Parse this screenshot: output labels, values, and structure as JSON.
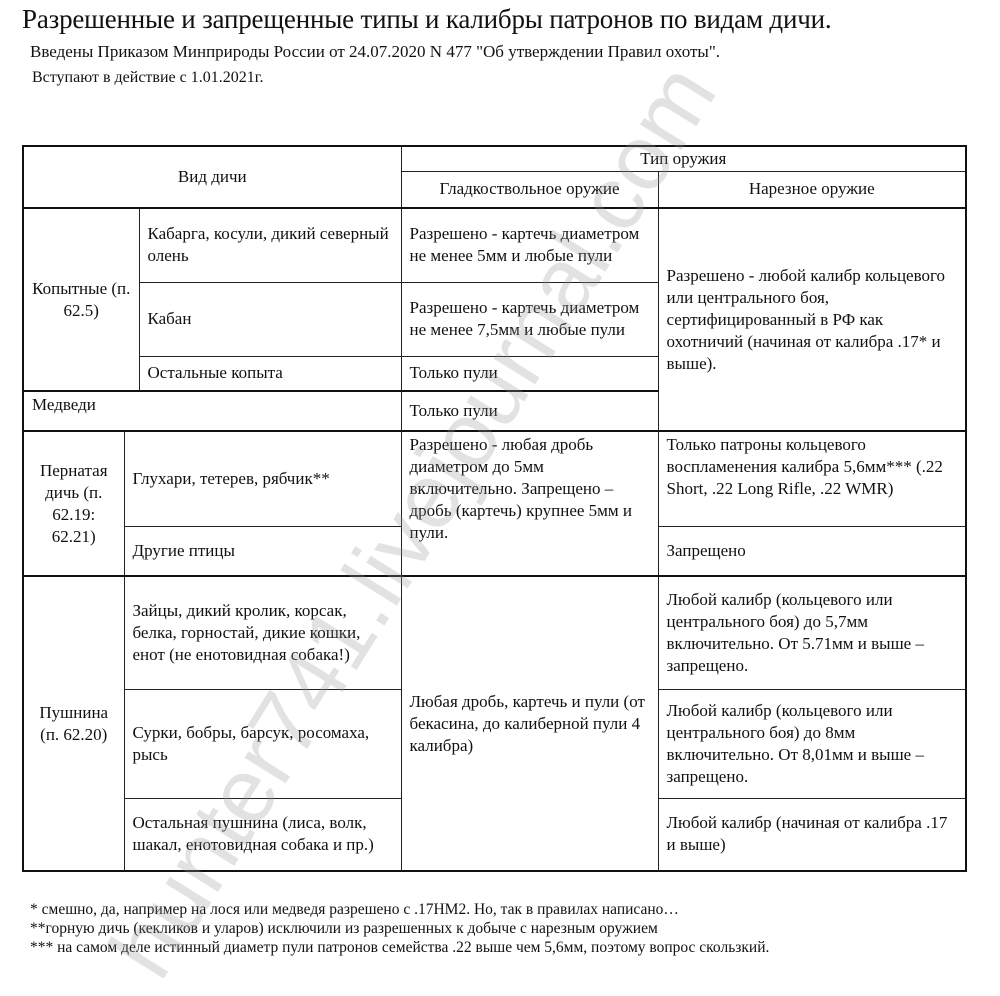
{
  "title": "Разрешенные и запрещенные типы и калибры патронов по видам дичи.",
  "subtitle": "Введены Приказом Минприроды России от 24.07.2020 N 477 \"Об утверждении Правил охоты\".",
  "effective": "Вступают в действие с 1.01.2021г.",
  "watermark": "hunter741.livejournal.com",
  "table": {
    "h_game": "Вид дичи",
    "h_weapon": "Тип оружия",
    "h_smooth": "Гладкоствольное оружие",
    "h_rifled": "Нарезное оружие",
    "kop": {
      "group": "Копытные (п. 62.5)",
      "r1": {
        "game": "Кабарга, косули, дикий северный олень",
        "smooth": "Разрешено - картечь диаметром не менее 5мм и любые пули"
      },
      "r2": {
        "game": "Кабан",
        "smooth": "Разрешено - картечь диаметром не менее 7,5мм и любые пули"
      },
      "r3": {
        "game": "Остальные копыта",
        "smooth": "Только пули"
      },
      "rifled": "Разрешено - любой калибр кольцевого или центрального боя,  сертифицированный в РФ как охотничий (начиная от калибра .17* и выше)."
    },
    "bears": {
      "game": "Медведи",
      "smooth": "Только пули"
    },
    "birds": {
      "group": "Пернатая дичь (п. 62.19: 62.21)",
      "r1": {
        "game": "Глухари, тетерев, рябчик**",
        "rifled": "Только патроны кольцевого воспламенения калибра 5,6мм*** (.22 Short, .22 Long Rifle, .22 WMR)"
      },
      "r2": {
        "game": "Другие птицы",
        "rifled": "Запрещено"
      },
      "smooth": "Разрешено - любая дробь диаметром до 5мм включительно. Запрещено – дробь (картечь) крупнее 5мм и пули."
    },
    "fur": {
      "group": "Пушнина (п. 62.20)",
      "r1": {
        "game": "Зайцы, дикий кролик, корсак, белка, горностай, дикие кошки, енот (не енотовидная собака!)",
        "rifled": "Любой калибр (кольцевого или центрального боя) до 5,7мм включительно. От 5.71мм и выше – запрещено."
      },
      "r2": {
        "game": "Сурки, бобры, барсук, росомаха, рысь",
        "rifled": "Любой калибр (кольцевого или центрального боя) до 8мм включительно. От 8,01мм и выше – запрещено."
      },
      "r3": {
        "game": "Остальная пушнина (лиса, волк, шакал, енотовидная собака и пр.)",
        "rifled": "Любой калибр (начиная от калибра .17 и выше)"
      },
      "smooth": "Любая дробь, картечь и пули (от бекасина, до калиберной пули 4 калибра)"
    }
  },
  "notes": [
    "* смешно, да, например на лося или медведя разрешено с .17HM2. Но, так в правилах написано…",
    "**горную дичь (кекликов и уларов) исключили из разрешенных к добыче с нарезным оружием",
    "*** на самом деле истинный диаметр пули патронов семейства .22 выше чем 5,6мм, поэтому вопрос скользкий."
  ]
}
